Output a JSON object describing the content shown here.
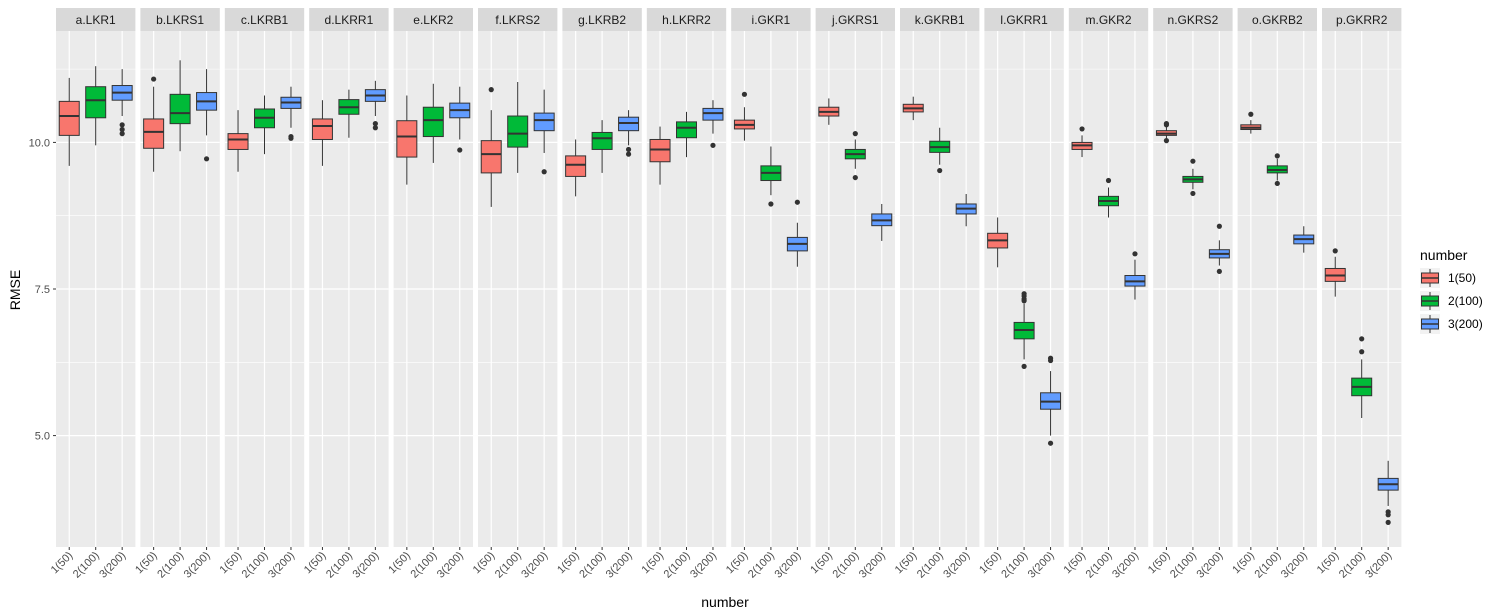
{
  "chart_data": {
    "type": "boxplot",
    "xlabel": "number",
    "ylabel": "RMSE",
    "ylim": [
      3.1,
      11.9
    ],
    "yticks": [
      5.0,
      7.5,
      10.0
    ],
    "ytick_labels": [
      "5.0",
      "7.5",
      "10.0"
    ],
    "categories": [
      "1(50)",
      "2(100)",
      "3(200)"
    ],
    "legend": {
      "title": "number",
      "position": "right",
      "entries": [
        {
          "label": "1(50)",
          "color": "#F8766D"
        },
        {
          "label": "2(100)",
          "color": "#00BA38"
        },
        {
          "label": "3(200)",
          "color": "#619CFF"
        }
      ]
    },
    "colors": [
      "#F8766D",
      "#00BA38",
      "#619CFF"
    ],
    "grid": true,
    "panels": [
      {
        "label": "a.LKR1",
        "boxes": [
          {
            "whisker_low": 9.6,
            "q1": 10.12,
            "median": 10.45,
            "q3": 10.7,
            "whisker_high": 11.1,
            "outliers": []
          },
          {
            "whisker_low": 9.95,
            "q1": 10.42,
            "median": 10.72,
            "q3": 10.95,
            "whisker_high": 11.3,
            "outliers": []
          },
          {
            "whisker_low": 10.45,
            "q1": 10.72,
            "median": 10.85,
            "q3": 10.97,
            "whisker_high": 11.25,
            "outliers": [
              10.3,
              10.22,
              10.15
            ]
          }
        ]
      },
      {
        "label": "b.LKRS1",
        "boxes": [
          {
            "whisker_low": 9.5,
            "q1": 9.9,
            "median": 10.18,
            "q3": 10.4,
            "whisker_high": 10.95,
            "outliers": [
              11.08
            ]
          },
          {
            "whisker_low": 9.85,
            "q1": 10.32,
            "median": 10.5,
            "q3": 10.82,
            "whisker_high": 11.4,
            "outliers": []
          },
          {
            "whisker_low": 10.12,
            "q1": 10.55,
            "median": 10.7,
            "q3": 10.85,
            "whisker_high": 11.25,
            "outliers": [
              9.72
            ]
          }
        ]
      },
      {
        "label": "c.LKRB1",
        "boxes": [
          {
            "whisker_low": 9.5,
            "q1": 9.88,
            "median": 10.05,
            "q3": 10.15,
            "whisker_high": 10.55,
            "outliers": []
          },
          {
            "whisker_low": 9.8,
            "q1": 10.25,
            "median": 10.42,
            "q3": 10.57,
            "whisker_high": 10.8,
            "outliers": []
          },
          {
            "whisker_low": 10.25,
            "q1": 10.58,
            "median": 10.68,
            "q3": 10.77,
            "whisker_high": 10.95,
            "outliers": [
              10.1,
              10.07
            ]
          }
        ]
      },
      {
        "label": "d.LKRR1",
        "boxes": [
          {
            "whisker_low": 9.6,
            "q1": 10.05,
            "median": 10.28,
            "q3": 10.4,
            "whisker_high": 10.72,
            "outliers": []
          },
          {
            "whisker_low": 10.08,
            "q1": 10.48,
            "median": 10.6,
            "q3": 10.73,
            "whisker_high": 10.9,
            "outliers": []
          },
          {
            "whisker_low": 10.45,
            "q1": 10.7,
            "median": 10.8,
            "q3": 10.9,
            "whisker_high": 11.05,
            "outliers": [
              10.32,
              10.25
            ]
          }
        ]
      },
      {
        "label": "e.LKR2",
        "boxes": [
          {
            "whisker_low": 9.28,
            "q1": 9.75,
            "median": 10.1,
            "q3": 10.37,
            "whisker_high": 10.8,
            "outliers": []
          },
          {
            "whisker_low": 9.65,
            "q1": 10.1,
            "median": 10.38,
            "q3": 10.6,
            "whisker_high": 11.0,
            "outliers": []
          },
          {
            "whisker_low": 10.05,
            "q1": 10.42,
            "median": 10.55,
            "q3": 10.67,
            "whisker_high": 10.95,
            "outliers": [
              9.87
            ]
          }
        ]
      },
      {
        "label": "f.LKRS2",
        "boxes": [
          {
            "whisker_low": 8.9,
            "q1": 9.48,
            "median": 9.8,
            "q3": 10.03,
            "whisker_high": 10.55,
            "outliers": [
              10.9
            ]
          },
          {
            "whisker_low": 9.48,
            "q1": 9.92,
            "median": 10.15,
            "q3": 10.45,
            "whisker_high": 11.03,
            "outliers": []
          },
          {
            "whisker_low": 9.82,
            "q1": 10.2,
            "median": 10.38,
            "q3": 10.5,
            "whisker_high": 10.9,
            "outliers": [
              9.5
            ]
          }
        ]
      },
      {
        "label": "g.LKRB2",
        "boxes": [
          {
            "whisker_low": 9.08,
            "q1": 9.42,
            "median": 9.62,
            "q3": 9.77,
            "whisker_high": 10.05,
            "outliers": []
          },
          {
            "whisker_low": 9.48,
            "q1": 9.88,
            "median": 10.07,
            "q3": 10.17,
            "whisker_high": 10.38,
            "outliers": []
          },
          {
            "whisker_low": 9.95,
            "q1": 10.2,
            "median": 10.33,
            "q3": 10.43,
            "whisker_high": 10.55,
            "outliers": [
              9.88,
              9.8
            ]
          }
        ]
      },
      {
        "label": "h.LKRR2",
        "boxes": [
          {
            "whisker_low": 9.28,
            "q1": 9.67,
            "median": 9.88,
            "q3": 10.05,
            "whisker_high": 10.27,
            "outliers": []
          },
          {
            "whisker_low": 9.75,
            "q1": 10.08,
            "median": 10.25,
            "q3": 10.35,
            "whisker_high": 10.52,
            "outliers": []
          },
          {
            "whisker_low": 10.15,
            "q1": 10.38,
            "median": 10.5,
            "q3": 10.58,
            "whisker_high": 10.72,
            "outliers": [
              9.95
            ]
          }
        ]
      },
      {
        "label": "i.GKR1",
        "boxes": [
          {
            "whisker_low": 10.03,
            "q1": 10.23,
            "median": 10.3,
            "q3": 10.38,
            "whisker_high": 10.6,
            "outliers": [
              10.82
            ]
          },
          {
            "whisker_low": 9.1,
            "q1": 9.35,
            "median": 9.48,
            "q3": 9.6,
            "whisker_high": 9.93,
            "outliers": [
              8.95
            ]
          },
          {
            "whisker_low": 7.88,
            "q1": 8.15,
            "median": 8.27,
            "q3": 8.38,
            "whisker_high": 8.63,
            "outliers": [
              8.98
            ]
          }
        ]
      },
      {
        "label": "j.GKRS1",
        "boxes": [
          {
            "whisker_low": 10.3,
            "q1": 10.45,
            "median": 10.52,
            "q3": 10.6,
            "whisker_high": 10.75,
            "outliers": []
          },
          {
            "whisker_low": 9.55,
            "q1": 9.72,
            "median": 9.8,
            "q3": 9.88,
            "whisker_high": 10.05,
            "outliers": [
              10.15,
              9.4
            ]
          },
          {
            "whisker_low": 8.32,
            "q1": 8.58,
            "median": 8.67,
            "q3": 8.78,
            "whisker_high": 8.95,
            "outliers": []
          }
        ]
      },
      {
        "label": "k.GKRB1",
        "boxes": [
          {
            "whisker_low": 10.38,
            "q1": 10.52,
            "median": 10.58,
            "q3": 10.65,
            "whisker_high": 10.78,
            "outliers": []
          },
          {
            "whisker_low": 9.62,
            "q1": 9.83,
            "median": 9.92,
            "q3": 10.02,
            "whisker_high": 10.25,
            "outliers": [
              9.52
            ]
          },
          {
            "whisker_low": 8.57,
            "q1": 8.78,
            "median": 8.87,
            "q3": 8.95,
            "whisker_high": 9.12,
            "outliers": []
          }
        ]
      },
      {
        "label": "l.GKRR1",
        "boxes": [
          {
            "whisker_low": 7.87,
            "q1": 8.2,
            "median": 8.33,
            "q3": 8.45,
            "whisker_high": 8.72,
            "outliers": []
          },
          {
            "whisker_low": 6.3,
            "q1": 6.65,
            "median": 6.8,
            "q3": 6.93,
            "whisker_high": 7.25,
            "outliers": [
              7.42,
              7.38,
              7.33,
              7.3,
              6.18
            ]
          },
          {
            "whisker_low": 5.0,
            "q1": 5.45,
            "median": 5.58,
            "q3": 5.73,
            "whisker_high": 6.1,
            "outliers": [
              6.32,
              6.28,
              4.87
            ]
          }
        ]
      },
      {
        "label": "m.GKR2",
        "boxes": [
          {
            "whisker_low": 9.75,
            "q1": 9.88,
            "median": 9.95,
            "q3": 10.0,
            "whisker_high": 10.12,
            "outliers": [
              10.23
            ]
          },
          {
            "whisker_low": 8.72,
            "q1": 8.92,
            "median": 9.0,
            "q3": 9.08,
            "whisker_high": 9.23,
            "outliers": [
              9.35
            ]
          },
          {
            "whisker_low": 7.32,
            "q1": 7.55,
            "median": 7.63,
            "q3": 7.73,
            "whisker_high": 8.0,
            "outliers": [
              8.1
            ]
          }
        ]
      },
      {
        "label": "n.GKRS2",
        "boxes": [
          {
            "whisker_low": 10.05,
            "q1": 10.12,
            "median": 10.15,
            "q3": 10.2,
            "whisker_high": 10.27,
            "outliers": [
              10.32,
              10.3,
              10.03
            ]
          },
          {
            "whisker_low": 9.2,
            "q1": 9.32,
            "median": 9.37,
            "q3": 9.42,
            "whisker_high": 9.55,
            "outliers": [
              9.68,
              9.13
            ]
          },
          {
            "whisker_low": 7.9,
            "q1": 8.03,
            "median": 8.1,
            "q3": 8.17,
            "whisker_high": 8.33,
            "outliers": [
              8.57,
              7.8
            ]
          }
        ]
      },
      {
        "label": "o.GKRB2",
        "boxes": [
          {
            "whisker_low": 10.15,
            "q1": 10.22,
            "median": 10.25,
            "q3": 10.3,
            "whisker_high": 10.38,
            "outliers": [
              10.48
            ]
          },
          {
            "whisker_low": 9.35,
            "q1": 9.48,
            "median": 9.53,
            "q3": 9.6,
            "whisker_high": 9.72,
            "outliers": [
              9.77,
              9.3
            ]
          },
          {
            "whisker_low": 8.12,
            "q1": 8.27,
            "median": 8.35,
            "q3": 8.42,
            "whisker_high": 8.57,
            "outliers": []
          }
        ]
      },
      {
        "label": "p.GKRR2",
        "boxes": [
          {
            "whisker_low": 7.37,
            "q1": 7.63,
            "median": 7.73,
            "q3": 7.85,
            "whisker_high": 8.05,
            "outliers": [
              8.15
            ]
          },
          {
            "whisker_low": 5.3,
            "q1": 5.68,
            "median": 5.83,
            "q3": 5.98,
            "whisker_high": 6.3,
            "outliers": [
              6.65,
              6.43
            ]
          },
          {
            "whisker_low": 3.8,
            "q1": 4.07,
            "median": 4.17,
            "q3": 4.27,
            "whisker_high": 4.57,
            "outliers": [
              3.7,
              3.65,
              3.52
            ]
          }
        ]
      }
    ]
  }
}
